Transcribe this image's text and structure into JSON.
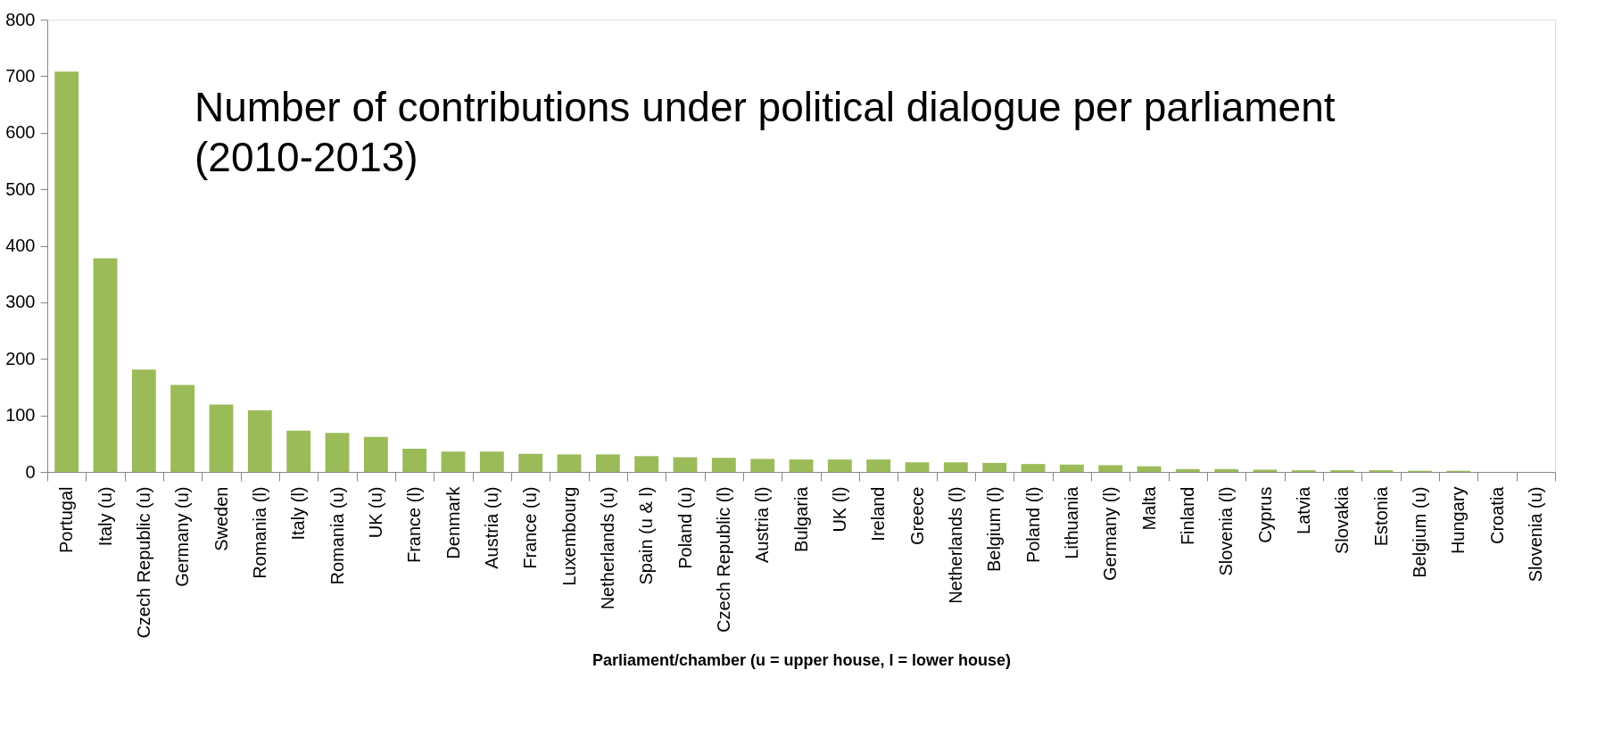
{
  "chart_data": {
    "type": "bar",
    "title": "Number of contributions under political dialogue per parliament (2010-2013)",
    "xlabel": "Parliament/chamber (u = upper house, l = lower house)",
    "categories": [
      "Portugal",
      "Italy (u)",
      "Czech Republic (u)",
      "Germany (u)",
      "Sweden",
      "Romania (l)",
      "Italy (l)",
      "Romania (u)",
      "UK (u)",
      "France (l)",
      "Denmark",
      "Austria (u)",
      "France (u)",
      "Luxembourg",
      "Netherlands (u)",
      "Spain (u & l)",
      "Poland (u)",
      "Czech Republic (l)",
      "Austria (l)",
      "Bulgaria",
      "UK (l)",
      "Ireland",
      "Greece",
      "Netherlands (l)",
      "Belgium (l)",
      "Poland (l)",
      "Lithuania",
      "Germany (l)",
      "Malta",
      "Finland",
      "Slovenia (l)",
      "Cyprus",
      "Latvia",
      "Slovakia",
      "Estonia",
      "Belgium (u)",
      "Hungary",
      "Croatia",
      "Slovenia (u)"
    ],
    "values": [
      708,
      378,
      181,
      154,
      119,
      109,
      73,
      69,
      62,
      41,
      36,
      36,
      32,
      31,
      31,
      28,
      26,
      25,
      23,
      22,
      22,
      22,
      17,
      17,
      16,
      14,
      13,
      12,
      10,
      5,
      5,
      4,
      3,
      3,
      3,
      2,
      2,
      0,
      0
    ],
    "color": "#9bbb59",
    "ylim": [
      0,
      800
    ],
    "yticks": [
      0,
      100,
      200,
      300,
      400,
      500,
      600,
      700,
      800
    ],
    "grid": false
  }
}
